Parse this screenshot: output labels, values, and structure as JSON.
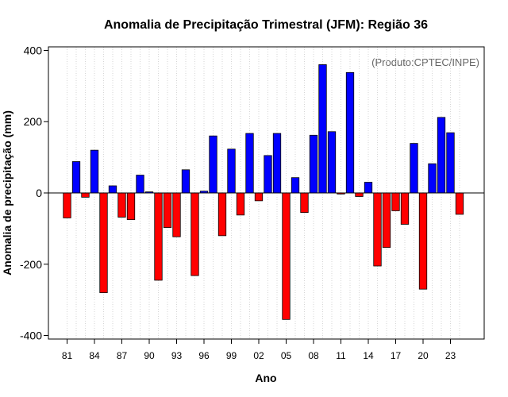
{
  "chart_data": {
    "type": "bar",
    "title": "Anomalia de Precipitação Trimestral (JFM): Região 36",
    "xlabel": "Ano",
    "ylabel": "Anomalia de precipitação (mm)",
    "annotation": "(Produto:CPTEC/INPE)",
    "ylim": [
      -410,
      410
    ],
    "yticks": [
      -400,
      -200,
      0,
      200,
      400
    ],
    "xtick_labels": [
      "81",
      "84",
      "87",
      "90",
      "93",
      "96",
      "99",
      "02",
      "05",
      "08",
      "11",
      "14",
      "17",
      "20",
      "23"
    ],
    "grid": "vertical dotted",
    "positive_color": "#0000ff",
    "negative_color": "#ff0000",
    "years": [
      1981,
      1982,
      1983,
      1984,
      1985,
      1986,
      1987,
      1988,
      1989,
      1990,
      1991,
      1992,
      1993,
      1994,
      1995,
      1996,
      1997,
      1998,
      1999,
      2000,
      2001,
      2002,
      2003,
      2004,
      2005,
      2006,
      2007,
      2008,
      2009,
      2010,
      2011,
      2012,
      2013,
      2014,
      2015,
      2016,
      2017,
      2018,
      2019,
      2020,
      2021,
      2022,
      2023,
      2024
    ],
    "values": [
      -70,
      88,
      -12,
      120,
      -280,
      20,
      -68,
      -75,
      50,
      3,
      -245,
      -97,
      -123,
      65,
      -232,
      5,
      160,
      -120,
      123,
      -62,
      167,
      -22,
      105,
      167,
      -355,
      43,
      -55,
      162,
      360,
      172,
      -3,
      338,
      -10,
      30,
      -205,
      -153,
      -50,
      -88,
      139,
      -270,
      82,
      212,
      169,
      -60
    ]
  }
}
